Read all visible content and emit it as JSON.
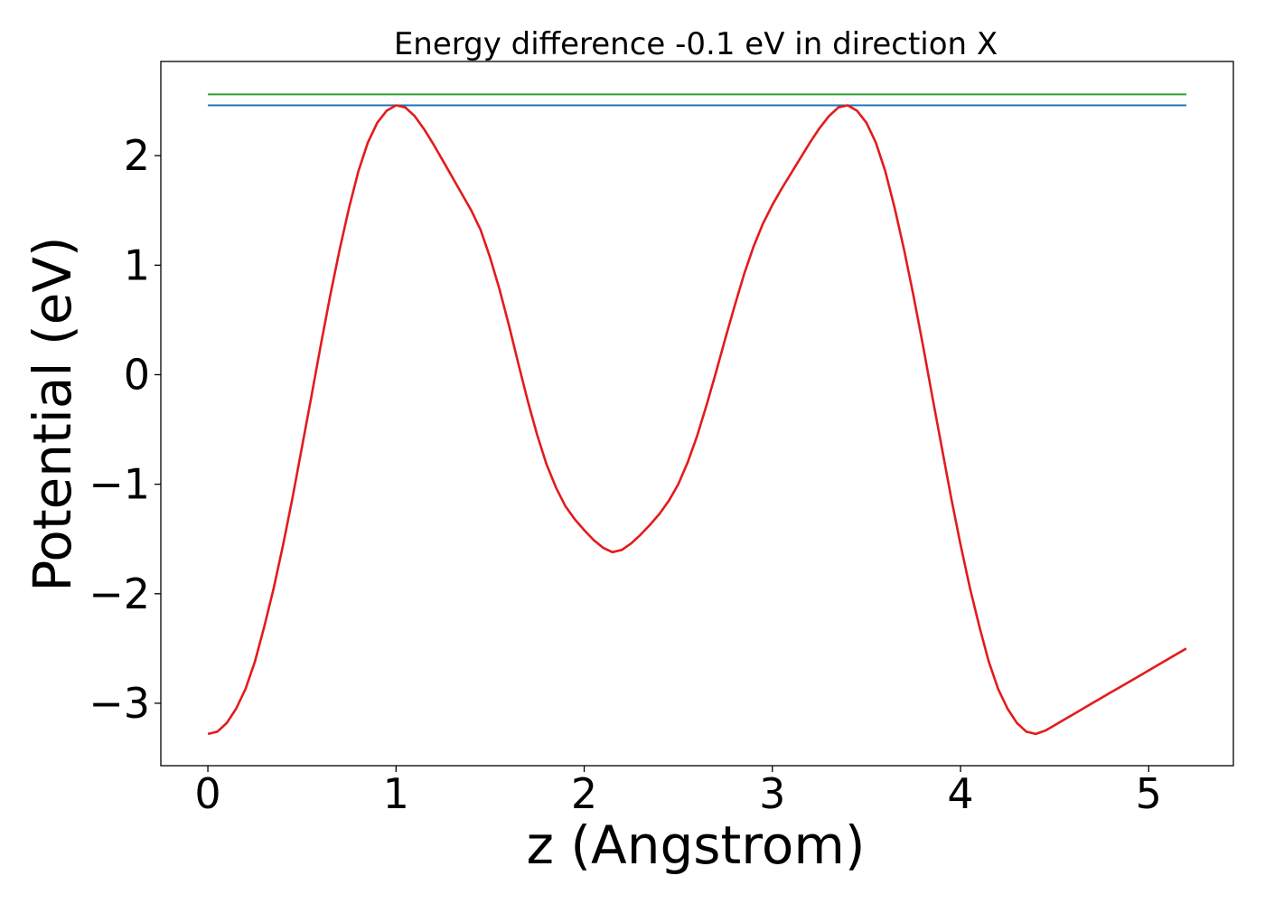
{
  "chart_data": {
    "type": "line",
    "title": "Energy difference -0.1 eV in direction X",
    "xlabel": "z (Angstrom)",
    "ylabel": "Potential (eV)",
    "xlim": [
      -0.25,
      5.45
    ],
    "ylim": [
      -3.57,
      2.86
    ],
    "xticks": [
      0,
      1,
      2,
      3,
      4,
      5
    ],
    "xtick_labels": [
      "0",
      "1",
      "2",
      "3",
      "4",
      "5"
    ],
    "yticks": [
      -3,
      -2,
      -1,
      0,
      1,
      2
    ],
    "ytick_labels": [
      "−3",
      "−2",
      "−1",
      "0",
      "1",
      "2"
    ],
    "grid": false,
    "hlines": [
      {
        "y": 2.56,
        "x": [
          0,
          5.2
        ],
        "color": "#2ca02c"
      },
      {
        "y": 2.46,
        "x": [
          0,
          5.2
        ],
        "color": "#1f77b4"
      }
    ],
    "series": [
      {
        "color": "#e41a1c",
        "x": [
          0,
          0.05,
          0.1,
          0.15,
          0.2,
          0.25,
          0.3,
          0.35,
          0.4,
          0.45,
          0.5,
          0.55,
          0.6,
          0.65,
          0.7,
          0.75,
          0.8,
          0.85,
          0.9,
          0.95,
          1.0,
          1.05,
          1.1,
          1.15,
          1.2,
          1.25,
          1.3,
          1.35,
          1.4,
          1.45,
          1.5,
          1.55,
          1.6,
          1.65,
          1.7,
          1.75,
          1.8,
          1.85,
          1.9,
          1.95,
          2.0,
          2.05,
          2.1,
          2.15,
          2.2,
          2.25,
          2.3,
          2.35,
          2.4,
          2.45,
          2.5,
          2.55,
          2.6,
          2.65,
          2.7,
          2.75,
          2.8,
          2.85,
          2.9,
          2.95,
          3.0,
          3.05,
          3.1,
          3.15,
          3.2,
          3.25,
          3.3,
          3.35,
          3.4,
          3.45,
          3.5,
          3.55,
          3.6,
          3.65,
          3.7,
          3.75,
          3.8,
          3.85,
          3.9,
          3.95,
          4.0,
          4.05,
          4.1,
          4.15,
          4.2,
          4.25,
          4.3,
          4.35,
          4.4,
          4.45,
          4.5,
          4.55,
          4.6,
          4.65,
          4.7,
          4.75,
          4.8,
          4.85,
          4.9,
          4.95,
          5.0,
          5.05,
          5.1,
          5.15,
          5.2
        ],
        "y": [
          -3.28,
          -3.26,
          -3.18,
          -3.05,
          -2.87,
          -2.62,
          -2.3,
          -1.95,
          -1.55,
          -1.12,
          -0.66,
          -0.2,
          0.27,
          0.72,
          1.14,
          1.52,
          1.86,
          2.12,
          2.3,
          2.41,
          2.46,
          2.44,
          2.36,
          2.24,
          2.1,
          1.95,
          1.8,
          1.65,
          1.5,
          1.32,
          1.07,
          0.78,
          0.45,
          0.1,
          -0.24,
          -0.55,
          -0.82,
          -1.03,
          -1.2,
          -1.32,
          -1.42,
          -1.51,
          -1.58,
          -1.62,
          -1.6,
          -1.54,
          -1.46,
          -1.37,
          -1.27,
          -1.15,
          -1.0,
          -0.8,
          -0.56,
          -0.28,
          0.02,
          0.33,
          0.63,
          0.92,
          1.17,
          1.38,
          1.55,
          1.7,
          1.84,
          1.98,
          2.12,
          2.25,
          2.36,
          2.44,
          2.46,
          2.41,
          2.3,
          2.12,
          1.86,
          1.52,
          1.14,
          0.72,
          0.27,
          -0.2,
          -0.66,
          -1.12,
          -1.55,
          -1.95,
          -2.3,
          -2.62,
          -2.87,
          -3.05,
          -3.18,
          -3.26,
          -3.28,
          -3.25,
          -3.2,
          -3.15,
          -3.1,
          -3.05,
          -3.0,
          -2.95,
          -2.9,
          -2.85,
          -2.8,
          -2.75,
          -2.7,
          -2.65,
          -2.6,
          -2.55,
          -2.5
        ]
      }
    ]
  }
}
